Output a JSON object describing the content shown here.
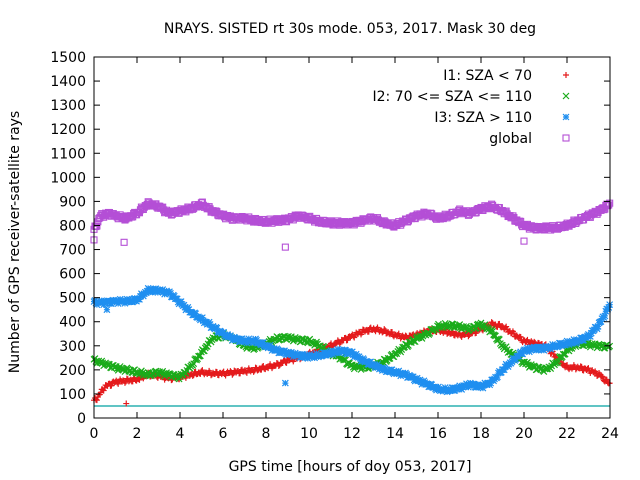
{
  "chart_data": {
    "type": "scatter",
    "title": "NRAYS. SISTED rt 30s mode. 053, 2017. Mask 30 deg",
    "xlabel": "GPS time [hours of doy 053, 2017]",
    "ylabel": "Number of GPS receiver-satellite rays",
    "xlim": [
      0,
      24
    ],
    "ylim": [
      0,
      1500
    ],
    "xticks": [
      "0",
      "2",
      "4",
      "6",
      "8",
      "10",
      "12",
      "14",
      "16",
      "18",
      "20",
      "22",
      "24"
    ],
    "yticks": [
      "0",
      "100",
      "200",
      "300",
      "400",
      "500",
      "600",
      "700",
      "800",
      "900",
      "1000",
      "1100",
      "1200",
      "1300",
      "1400",
      "1500"
    ],
    "grid": false,
    "legend_position": "top-right",
    "reference_line": {
      "y": 50,
      "color": "#00a0a0"
    },
    "series": [
      {
        "name": "I1: SZA < 70",
        "marker": "+",
        "color": "#e41a1c",
        "x": [
          0,
          0.2,
          0.5,
          1,
          1.5,
          2,
          2.5,
          3,
          3.5,
          4,
          4.5,
          5,
          5.5,
          6,
          6.5,
          7,
          7.5,
          8,
          8.5,
          9,
          9.5,
          10,
          10.5,
          11,
          11.5,
          12,
          12.5,
          13,
          13.5,
          14,
          14.5,
          15,
          15.5,
          16,
          16.5,
          17,
          17.5,
          18,
          18.5,
          19,
          19.5,
          20,
          20.5,
          21,
          21.5,
          22,
          22.5,
          23,
          23.5,
          24
        ],
        "y": [
          70,
          90,
          130,
          150,
          155,
          160,
          180,
          175,
          165,
          170,
          180,
          190,
          185,
          185,
          190,
          195,
          200,
          210,
          220,
          240,
          250,
          265,
          280,
          300,
          320,
          340,
          360,
          370,
          360,
          345,
          335,
          345,
          360,
          365,
          355,
          345,
          350,
          370,
          390,
          380,
          350,
          320,
          310,
          300,
          250,
          210,
          210,
          200,
          180,
          140
        ]
      },
      {
        "name": "I2: 70 <= SZA <= 110",
        "marker": "x",
        "color": "#1aab1a",
        "x": [
          0,
          0.5,
          1,
          1.5,
          2,
          2.5,
          3,
          3.5,
          4,
          4.5,
          5,
          5.5,
          6,
          6.5,
          7,
          7.5,
          8,
          8.5,
          9,
          9.5,
          10,
          10.5,
          11,
          11.5,
          12,
          12.5,
          13,
          13.5,
          14,
          14.5,
          15,
          15.5,
          16,
          16.5,
          17,
          17.5,
          18,
          18.5,
          19,
          19.5,
          20,
          20.5,
          21,
          21.5,
          22,
          22.5,
          23,
          23.5,
          24
        ],
        "y": [
          240,
          225,
          210,
          200,
          190,
          180,
          190,
          180,
          170,
          215,
          270,
          330,
          345,
          330,
          300,
          290,
          310,
          330,
          335,
          325,
          320,
          300,
          270,
          250,
          215,
          210,
          215,
          235,
          265,
          300,
          330,
          350,
          380,
          385,
          380,
          370,
          390,
          360,
          300,
          260,
          230,
          210,
          200,
          230,
          280,
          310,
          305,
          300,
          295
        ]
      },
      {
        "name": "I3: SZA > 110",
        "marker": "*",
        "color": "#1f8ff0",
        "x": [
          0,
          0.5,
          1,
          1.5,
          2,
          2.5,
          3,
          3.5,
          4,
          4.5,
          5,
          5.5,
          6,
          6.5,
          7,
          7.5,
          8,
          8.5,
          9,
          9.5,
          10,
          10.5,
          11,
          11.5,
          12,
          12.5,
          13,
          13.5,
          14,
          14.5,
          15,
          15.5,
          16,
          16.5,
          17,
          17.5,
          18,
          18.5,
          19,
          19.5,
          20,
          20.5,
          21,
          21.5,
          22,
          22.5,
          23,
          23.5,
          24
        ],
        "y": [
          480,
          480,
          485,
          485,
          490,
          530,
          530,
          520,
          480,
          440,
          410,
          380,
          350,
          330,
          320,
          320,
          300,
          280,
          270,
          260,
          255,
          260,
          270,
          280,
          270,
          240,
          220,
          200,
          190,
          180,
          160,
          140,
          120,
          115,
          125,
          140,
          130,
          150,
          200,
          240,
          280,
          290,
          290,
          300,
          310,
          320,
          340,
          390,
          470
        ]
      },
      {
        "name": "global",
        "marker": "square",
        "color": "#b44fd6",
        "x": [
          0,
          0.3,
          0.7,
          1,
          1.5,
          2,
          2.5,
          3,
          3.5,
          4,
          4.5,
          5,
          5.5,
          6,
          6.5,
          7,
          7.5,
          8,
          8.5,
          9,
          9.5,
          10,
          10.5,
          11,
          11.5,
          12,
          12.5,
          13,
          13.5,
          14,
          14.5,
          15,
          15.5,
          16,
          16.5,
          17,
          17.5,
          18,
          18.5,
          19,
          19.5,
          20,
          20.5,
          21,
          21.5,
          22,
          22.5,
          23,
          23.5,
          24
        ],
        "y": [
          780,
          840,
          850,
          840,
          830,
          850,
          890,
          880,
          850,
          860,
          870,
          890,
          860,
          840,
          830,
          830,
          820,
          815,
          820,
          825,
          840,
          830,
          815,
          810,
          810,
          810,
          820,
          830,
          810,
          800,
          820,
          840,
          850,
          830,
          840,
          860,
          850,
          870,
          880,
          860,
          830,
          800,
          790,
          790,
          790,
          800,
          820,
          840,
          860,
          890
        ]
      }
    ],
    "outliers": [
      {
        "series": "I1: SZA < 70",
        "x": 1.5,
        "y": 60
      },
      {
        "series": "I3: SZA > 110",
        "x": 8.9,
        "y": 145
      },
      {
        "series": "I3: SZA > 110",
        "x": 0.6,
        "y": 450
      },
      {
        "series": "global",
        "x": 8.9,
        "y": 710
      },
      {
        "series": "global",
        "x": 1.4,
        "y": 730
      },
      {
        "series": "global",
        "x": 20,
        "y": 735
      },
      {
        "series": "global",
        "x": 0,
        "y": 740
      }
    ]
  }
}
